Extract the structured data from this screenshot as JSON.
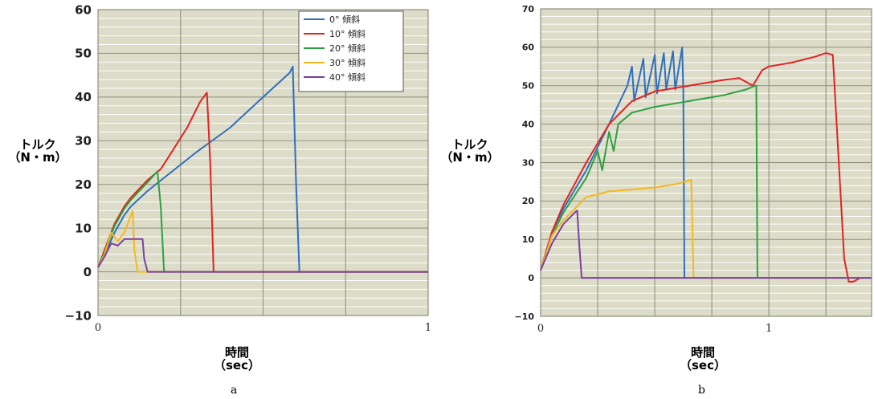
{
  "chart_data": [
    {
      "type": "line",
      "panel_label": "a",
      "ylabel_line1": "トルク",
      "ylabel_line2": "（N・m）",
      "xlabel_line1": "時間",
      "xlabel_line2": "（sec）",
      "xlim": [
        0,
        1
      ],
      "ylim": [
        -10,
        60
      ],
      "x_ticks": [
        "0",
        "1"
      ],
      "y_ticks": [
        "−10",
        "0",
        "10",
        "20",
        "30",
        "40",
        "50",
        "60"
      ],
      "y_tick_values": [
        -10,
        0,
        10,
        20,
        30,
        40,
        50,
        60
      ],
      "grid": true,
      "legend_position": "top-right",
      "series": [
        {
          "name": "0°  傾斜",
          "color": "#2f6fbe",
          "x": [
            0,
            0.02,
            0.05,
            0.08,
            0.1,
            0.15,
            0.2,
            0.3,
            0.4,
            0.5,
            0.58,
            0.59,
            0.6,
            0.61,
            1.0
          ],
          "y": [
            1,
            4,
            9,
            13,
            15,
            18.5,
            21.5,
            27.5,
            33,
            40,
            45.5,
            47,
            20,
            0,
            0
          ]
        },
        {
          "name": "10°  傾斜",
          "color": "#e02424",
          "x": [
            0,
            0.02,
            0.05,
            0.08,
            0.1,
            0.15,
            0.19,
            0.22,
            0.27,
            0.31,
            0.33,
            0.34,
            0.35,
            1.0
          ],
          "y": [
            1,
            5,
            11,
            15,
            17,
            21,
            23.5,
            27,
            33,
            39,
            41,
            25,
            0,
            0
          ]
        },
        {
          "name": "20°  傾斜",
          "color": "#2ea043",
          "x": [
            0,
            0.02,
            0.05,
            0.08,
            0.1,
            0.15,
            0.18,
            0.19,
            0.2,
            1.0
          ],
          "y": [
            1,
            4.5,
            10.5,
            14.5,
            16.5,
            20.5,
            23,
            15,
            0,
            0
          ]
        },
        {
          "name": "30°  傾斜",
          "color": "#f5b81c",
          "x": [
            0,
            0.02,
            0.04,
            0.06,
            0.08,
            0.1,
            0.105,
            0.11,
            0.12,
            0.13,
            1.0
          ],
          "y": [
            1,
            4,
            9,
            7,
            9,
            13,
            14,
            5,
            0,
            0,
            0
          ]
        },
        {
          "name": "40°  傾斜",
          "color": "#7b3fa0",
          "x": [
            0,
            0.02,
            0.04,
            0.06,
            0.08,
            0.1,
            0.12,
            0.135,
            0.14,
            0.15,
            1.0
          ],
          "y": [
            1,
            3.5,
            6.5,
            6,
            7.5,
            7.5,
            7.5,
            7.5,
            3,
            0,
            0
          ]
        }
      ]
    },
    {
      "type": "line",
      "panel_label": "b",
      "ylabel_line1": "トルク",
      "ylabel_line2": "（N・m）",
      "xlabel_line1": "時間",
      "xlabel_line2": "（sec）",
      "xlim": [
        0,
        1.45
      ],
      "ylim": [
        -10,
        70
      ],
      "x_ticks": [
        "0",
        "1"
      ],
      "y_ticks": [
        "−10",
        "0",
        "10",
        "20",
        "30",
        "40",
        "50",
        "60",
        "70"
      ],
      "y_tick_values": [
        -10,
        0,
        10,
        20,
        30,
        40,
        50,
        60,
        70
      ],
      "grid": true,
      "legend_position": "none",
      "series": [
        {
          "name": "",
          "color": "#2f6fbe",
          "x": [
            0,
            0.05,
            0.1,
            0.2,
            0.3,
            0.38,
            0.4,
            0.41,
            0.45,
            0.46,
            0.5,
            0.51,
            0.54,
            0.55,
            0.58,
            0.59,
            0.62,
            0.625,
            0.63
          ],
          "y": [
            2,
            12,
            18,
            28,
            40,
            50,
            55,
            46,
            57,
            47,
            58,
            48,
            58.5,
            49,
            59,
            49,
            60,
            49,
            0
          ]
        },
        {
          "name": "",
          "color": "#e02424",
          "x": [
            0,
            0.05,
            0.1,
            0.2,
            0.3,
            0.4,
            0.5,
            0.6,
            0.7,
            0.8,
            0.87,
            0.93,
            0.97,
            1.0,
            1.1,
            1.2,
            1.25,
            1.28,
            1.33,
            1.35,
            1.37,
            1.4
          ],
          "y": [
            2,
            12,
            19,
            30,
            40,
            46,
            48.5,
            49.5,
            50.5,
            51.5,
            52,
            50,
            54,
            55,
            56,
            57.5,
            58.5,
            58,
            5,
            -1,
            -1,
            0
          ]
        },
        {
          "name": "",
          "color": "#2ea043",
          "x": [
            0,
            0.05,
            0.1,
            0.2,
            0.25,
            0.27,
            0.3,
            0.32,
            0.34,
            0.4,
            0.5,
            0.6,
            0.7,
            0.8,
            0.9,
            0.94,
            0.945,
            0.95
          ],
          "y": [
            2,
            11,
            17,
            26,
            33,
            28,
            38,
            33,
            40,
            43,
            44.5,
            45.5,
            46.5,
            47.5,
            49,
            50,
            50,
            0
          ]
        },
        {
          "name": "",
          "color": "#f5b81c",
          "x": [
            0,
            0.05,
            0.1,
            0.15,
            0.2,
            0.3,
            0.4,
            0.5,
            0.6,
            0.66,
            0.67,
            1.45
          ],
          "y": [
            2,
            11,
            15,
            18,
            21,
            22.5,
            23,
            23.5,
            24.5,
            25.5,
            0,
            0
          ]
        },
        {
          "name": "",
          "color": "#7b3fa0",
          "x": [
            0,
            0.05,
            0.1,
            0.15,
            0.16,
            0.17,
            0.18,
            1.45
          ],
          "y": [
            2,
            9,
            14,
            17,
            17.5,
            8,
            0,
            0
          ]
        }
      ]
    }
  ]
}
